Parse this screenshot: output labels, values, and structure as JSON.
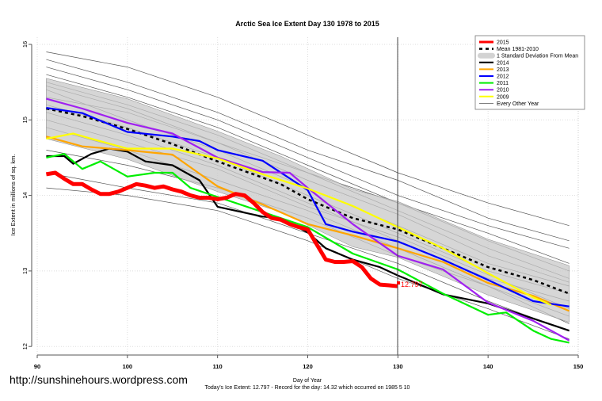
{
  "chart_data": {
    "type": "line",
    "title": "Arctic Sea Ice Extent Day 130 1978 to 2015",
    "xlabel": "Day of Year",
    "ylabel": "Ice Extent in millions of sq. km.",
    "xlim": [
      90,
      150
    ],
    "ylim": [
      12,
      16
    ],
    "xticks": [
      "90",
      "100",
      "110",
      "120",
      "130",
      "140",
      "150"
    ],
    "yticks": [
      "12",
      "13",
      "14",
      "15",
      "16"
    ],
    "grid": true,
    "legend_position": "top-right",
    "marker_day": 130,
    "current_label": "12.797",
    "footer": "Today's Ice Extent: 12.797  - Record for the day: 14.32 which occurred on 1985 5 10",
    "watermark": "http://sunshinehours.wordpress.com",
    "legend": [
      {
        "label": "2015",
        "color": "#ff0000",
        "style": "thick"
      },
      {
        "label": "Mean 1981-2010",
        "color": "#000000",
        "style": "dashed"
      },
      {
        "label": "1 Standard Deviation From Mean",
        "color": "#d3d3d3",
        "style": "band"
      },
      {
        "label": "2014",
        "color": "#000000",
        "style": "line"
      },
      {
        "label": "2013",
        "color": "#ffa500",
        "style": "line"
      },
      {
        "label": "2012",
        "color": "#0000ff",
        "style": "line"
      },
      {
        "label": "2011",
        "color": "#00ee00",
        "style": "line"
      },
      {
        "label": "2010",
        "color": "#a020f0",
        "style": "line"
      },
      {
        "label": "2009",
        "color": "#ffff00",
        "style": "line"
      },
      {
        "label": "Every Other Year",
        "color": "#555555",
        "style": "thin"
      }
    ],
    "band": {
      "x": [
        91,
        100,
        110,
        117,
        125,
        130,
        140,
        149
      ],
      "upper": [
        15.55,
        15.28,
        14.85,
        14.52,
        14.08,
        13.92,
        13.42,
        13.07
      ],
      "lower": [
        14.75,
        14.48,
        14.05,
        13.78,
        13.32,
        13.18,
        12.68,
        12.32
      ]
    },
    "mean": {
      "x": [
        91,
        95,
        100,
        105,
        110,
        117,
        120,
        125,
        130,
        135,
        140,
        145,
        149
      ],
      "y": [
        15.15,
        15.05,
        14.88,
        14.68,
        14.45,
        14.15,
        13.95,
        13.7,
        13.55,
        13.3,
        13.05,
        12.88,
        12.7
      ]
    },
    "series": [
      {
        "name": "2014",
        "color": "#000000",
        "x": [
          91,
          93,
          94,
          96,
          98,
          100,
          102,
          105,
          108,
          110,
          115,
          117,
          120,
          122,
          125,
          128,
          130,
          135,
          140,
          145,
          149
        ],
        "y": [
          14.52,
          14.52,
          14.42,
          14.55,
          14.62,
          14.58,
          14.45,
          14.4,
          14.2,
          13.85,
          13.72,
          13.7,
          13.51,
          13.3,
          13.15,
          13.05,
          12.94,
          12.69,
          12.57,
          12.37,
          12.21
        ]
      },
      {
        "name": "2013",
        "color": "#ffa500",
        "x": [
          91,
          95,
          100,
          105,
          110,
          115,
          120,
          125,
          130,
          135,
          140,
          145,
          149
        ],
        "y": [
          14.78,
          14.65,
          14.6,
          14.54,
          14.12,
          13.88,
          13.62,
          13.47,
          13.3,
          13.12,
          12.84,
          12.67,
          12.47
        ]
      },
      {
        "name": "2012",
        "color": "#0000ff",
        "x": [
          91,
          95,
          100,
          105,
          108,
          110,
          115,
          120,
          122,
          125,
          130,
          135,
          140,
          145,
          149
        ],
        "y": [
          15.16,
          15.09,
          14.84,
          14.78,
          14.72,
          14.6,
          14.46,
          14.07,
          13.62,
          13.52,
          13.39,
          13.15,
          12.88,
          12.6,
          12.53
        ]
      },
      {
        "name": "2011",
        "color": "#00ee00",
        "x": [
          91,
          93,
          95,
          97,
          100,
          103,
          105,
          107,
          110,
          115,
          120,
          125,
          130,
          135,
          140,
          142,
          145,
          147,
          149
        ],
        "y": [
          14.5,
          14.55,
          14.35,
          14.45,
          14.25,
          14.3,
          14.3,
          14.1,
          13.98,
          13.78,
          13.58,
          13.23,
          13.02,
          12.7,
          12.42,
          12.45,
          12.21,
          12.1,
          12.05
        ]
      },
      {
        "name": "2010",
        "color": "#a020f0",
        "x": [
          91,
          95,
          100,
          105,
          110,
          115,
          118,
          120,
          125,
          130,
          135,
          140,
          145,
          149
        ],
        "y": [
          15.28,
          15.15,
          14.96,
          14.82,
          14.5,
          14.31,
          14.3,
          14.1,
          13.62,
          13.2,
          13.02,
          12.58,
          12.34,
          12.08
        ]
      },
      {
        "name": "2009",
        "color": "#ffff00",
        "x": [
          91,
          94,
          96,
          100,
          105,
          110,
          115,
          120,
          125,
          130,
          135,
          140,
          145,
          147
        ],
        "y": [
          14.75,
          14.82,
          14.75,
          14.62,
          14.62,
          14.49,
          14.28,
          14.09,
          13.86,
          13.58,
          13.3,
          12.97,
          12.65,
          12.55
        ]
      },
      {
        "name": "2015",
        "color": "#ff0000",
        "x": [
          91,
          92,
          93,
          94,
          95,
          96,
          97,
          98,
          99,
          100,
          101,
          102,
          103,
          104,
          105,
          106,
          107,
          108,
          109,
          110,
          111,
          112,
          113,
          114,
          115,
          116,
          117,
          118,
          119,
          120,
          121,
          122,
          123,
          124,
          125,
          126,
          127,
          128,
          129,
          130
        ],
        "y": [
          14.28,
          14.3,
          14.22,
          14.15,
          14.15,
          14.08,
          14.02,
          14.02,
          14.05,
          14.1,
          14.15,
          14.13,
          14.1,
          14.12,
          14.08,
          14.05,
          14.0,
          13.97,
          13.97,
          13.95,
          13.97,
          14.02,
          14.0,
          13.9,
          13.78,
          13.7,
          13.68,
          13.62,
          13.58,
          13.55,
          13.35,
          13.15,
          13.12,
          13.12,
          13.13,
          13.05,
          12.9,
          12.82,
          12.81,
          12.797
        ]
      }
    ],
    "other_years": {
      "x": [
        91,
        100,
        110,
        120,
        130,
        140,
        149
      ],
      "lines": [
        [
          15.9,
          15.7,
          15.3,
          14.8,
          14.3,
          13.9,
          13.6
        ],
        [
          15.8,
          15.5,
          15.1,
          14.6,
          14.2,
          13.7,
          13.4
        ],
        [
          15.7,
          15.4,
          15.0,
          14.5,
          14.0,
          13.6,
          13.3
        ],
        [
          15.6,
          15.3,
          14.9,
          14.4,
          13.9,
          13.5,
          13.1
        ],
        [
          15.5,
          15.2,
          14.8,
          14.3,
          13.8,
          13.3,
          12.9
        ],
        [
          15.45,
          15.15,
          14.7,
          14.2,
          13.75,
          13.2,
          12.85
        ],
        [
          15.4,
          15.0,
          14.6,
          14.1,
          13.6,
          13.1,
          12.8
        ],
        [
          15.3,
          15.1,
          14.7,
          14.3,
          13.9,
          13.4,
          13.0
        ],
        [
          15.2,
          14.9,
          14.5,
          14.0,
          13.5,
          13.0,
          12.7
        ],
        [
          15.1,
          14.8,
          14.4,
          13.9,
          13.4,
          12.9,
          12.6
        ],
        [
          15.0,
          14.7,
          14.35,
          13.85,
          13.45,
          12.95,
          12.5
        ],
        [
          14.9,
          14.6,
          14.2,
          13.8,
          13.3,
          12.8,
          12.4
        ],
        [
          14.6,
          14.4,
          14.1,
          13.7,
          13.2,
          12.8,
          12.3
        ],
        [
          14.3,
          14.1,
          13.9,
          13.5,
          13.1,
          12.6,
          12.2
        ],
        [
          14.1,
          14.0,
          13.8,
          13.4,
          12.9,
          12.5,
          12.1
        ]
      ]
    }
  }
}
